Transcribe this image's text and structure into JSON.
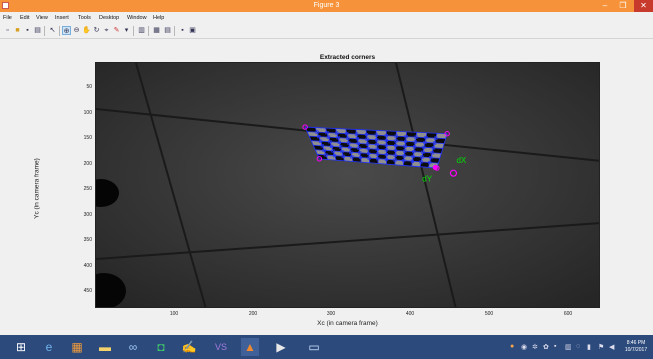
{
  "window": {
    "title": "Figure 3",
    "controls": {
      "minimize": "–",
      "maximize": "❐",
      "close": "✕"
    }
  },
  "menu": [
    "File",
    "Edit",
    "View",
    "Insert",
    "Tools",
    "Desktop",
    "Window",
    "Help"
  ],
  "toolbar": {
    "icons": [
      "new-figure-icon",
      "open-file-icon",
      "save-icon",
      "print-icon",
      "edit-plot-icon",
      "zoom-in-icon",
      "zoom-out-icon",
      "pan-icon",
      "rotate-3d-icon",
      "data-cursor-icon",
      "brush-icon",
      "link-plot-icon",
      "colorbar-icon",
      "legend-icon",
      "hide-plot-tools-icon",
      "show-plot-tools-icon"
    ]
  },
  "plot": {
    "title": "Extracted corners",
    "xlabel": "Xc (in camera frame)",
    "ylabel": "Yc (in camera frame)",
    "xticks": [
      "100",
      "200",
      "300",
      "400",
      "500",
      "600"
    ],
    "yticks": [
      "50",
      "100",
      "150",
      "200",
      "250",
      "300",
      "350",
      "400",
      "450"
    ],
    "annotations": {
      "dx": "dX",
      "dy": "dY"
    },
    "annotation_color": "#00e000",
    "corner_color": "#ff00ff",
    "grid_color": "#2233ff"
  },
  "chart_data": {
    "type": "scatter",
    "title": "Extracted corners",
    "xlabel": "Xc (in camera frame)",
    "ylabel": "Yc (in camera frame)",
    "xlim": [
      0,
      640
    ],
    "ylim": [
      480,
      0
    ],
    "checkerboard": {
      "corners": [
        [
          265,
          125
        ],
        [
          445,
          138
        ],
        [
          432,
          205
        ],
        [
          283,
          187
        ]
      ],
      "columns": 14,
      "rows": 7
    },
    "origin_marker": [
      430,
      204
    ],
    "dx_marker": [
      453,
      215
    ]
  },
  "taskbar": {
    "apps": [
      "windows-start-icon",
      "internet-explorer-icon",
      "file-explorer-icon",
      "media-icon",
      "network-icon",
      "office-icon",
      "paint-icon",
      "visual-studio-icon",
      "matlab-icon",
      "video-player-icon",
      "desktop-icon"
    ],
    "clock_time": "8:46 PM",
    "clock_date": "10/7/2017"
  }
}
